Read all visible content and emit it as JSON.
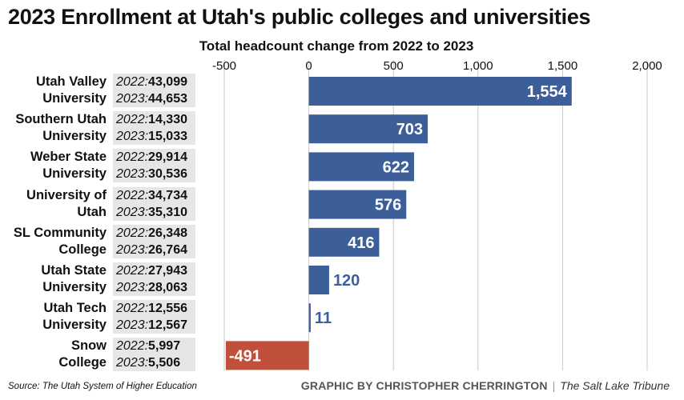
{
  "title": "2023 Enrollment at Utah's public colleges and universities",
  "source": "Source: The Utah System of Higher Education",
  "credit": {
    "byline": "GRAPHIC BY CHRISTOPHER CHERRINGTON",
    "separator": "|",
    "publisher": "The Salt Lake Tribune"
  },
  "colors": {
    "increase": "#3d5f99",
    "decrease": "#c0503b",
    "grid": "#c8c8c8",
    "year_box": "#e6e6e6"
  },
  "rows": [
    {
      "name_lines": [
        "Utah Valley",
        "University"
      ],
      "y2022_label": "2022:",
      "y2022": "43,099",
      "y2023_label": "2023:",
      "y2023": "44,653"
    },
    {
      "name_lines": [
        "Southern Utah",
        "University"
      ],
      "y2022_label": "2022:",
      "y2022": "14,330",
      "y2023_label": "2023:",
      "y2023": "15,033"
    },
    {
      "name_lines": [
        "Weber State",
        "University"
      ],
      "y2022_label": "2022:",
      "y2022": "29,914",
      "y2023_label": "2023:",
      "y2023": "30,536"
    },
    {
      "name_lines": [
        "University of",
        "Utah"
      ],
      "y2022_label": "2022:",
      "y2022": "34,734",
      "y2023_label": "2023:",
      "y2023": "35,310"
    },
    {
      "name_lines": [
        "SL Community",
        "College"
      ],
      "y2022_label": "2022:",
      "y2022": "26,348",
      "y2023_label": "2023:",
      "y2023": "26,764"
    },
    {
      "name_lines": [
        "Utah State",
        "University"
      ],
      "y2022_label": "2022:",
      "y2022": "27,943",
      "y2023_label": "2023:",
      "y2023": "28,063"
    },
    {
      "name_lines": [
        "Utah Tech",
        "University"
      ],
      "y2022_label": "2022:",
      "y2022": "12,556",
      "y2023_label": "2023:",
      "y2023": "12,567"
    },
    {
      "name_lines": [
        "Snow",
        "College"
      ],
      "y2022_label": "2022:",
      "y2022": "5,997",
      "y2023_label": "2023:",
      "y2023": "5,506"
    }
  ],
  "chart_data": {
    "type": "bar",
    "orientation": "horizontal",
    "title": "2023 Enrollment at Utah's public colleges and universities",
    "xlabel": "Total headcount change from 2022 to 2023",
    "xlim": [
      -500,
      2000
    ],
    "xticks": [
      -500,
      0,
      500,
      1000,
      1500,
      2000
    ],
    "xtick_labels": [
      "-500",
      "0",
      "500",
      "1,000",
      "1,500",
      "2,000"
    ],
    "categories": [
      "Utah Valley University",
      "Southern Utah University",
      "Weber State University",
      "University of Utah",
      "SL Community College",
      "Utah State University",
      "Utah Tech University",
      "Snow College"
    ],
    "values": [
      1554,
      703,
      622,
      576,
      416,
      120,
      11,
      -491
    ],
    "value_labels": [
      "1,554",
      "703",
      "622",
      "576",
      "416",
      "120",
      "11",
      "-491"
    ],
    "grid": true
  }
}
